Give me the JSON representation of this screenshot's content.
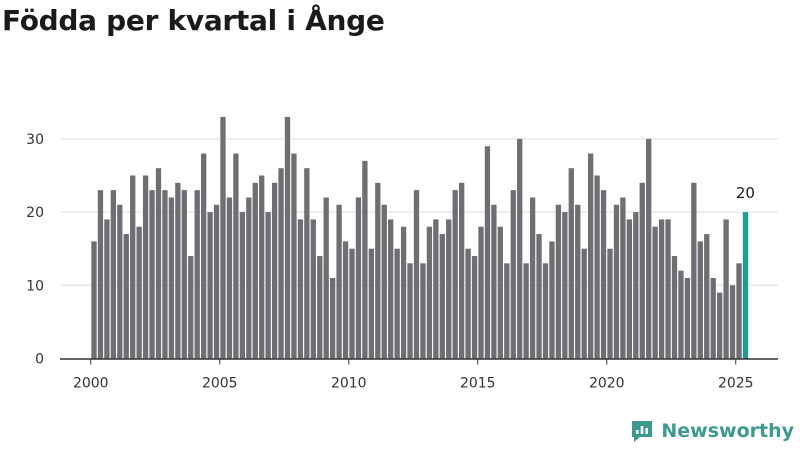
{
  "title": "Födda per kvartal i Ånge",
  "brand": {
    "name": "Newsworthy",
    "icon": "newsworthy-logo-icon",
    "color": "#3d9a8f"
  },
  "colors": {
    "bar": "#6e6e73",
    "highlight": "#1f9a8e",
    "grid": "#dddddd",
    "axis": "#333333"
  },
  "chart_data": {
    "type": "bar",
    "title": "Födda per kvartal i Ånge",
    "xlabel": "",
    "ylabel": "",
    "x_tick_labels": [
      "2000",
      "2005",
      "2010",
      "2015",
      "2020",
      "2025"
    ],
    "y_tick_labels": [
      "0",
      "10",
      "20",
      "30"
    ],
    "ylim": [
      0,
      35
    ],
    "grid": "horizontal",
    "first_period": "2000 Q1",
    "values": [
      16,
      23,
      19,
      23,
      21,
      17,
      25,
      18,
      25,
      23,
      26,
      23,
      22,
      24,
      23,
      14,
      23,
      28,
      20,
      21,
      33,
      22,
      28,
      20,
      22,
      24,
      25,
      20,
      24,
      26,
      33,
      28,
      19,
      26,
      19,
      14,
      22,
      11,
      21,
      16,
      15,
      22,
      27,
      15,
      24,
      21,
      19,
      15,
      18,
      13,
      23,
      13,
      18,
      19,
      17,
      19,
      23,
      24,
      15,
      14,
      18,
      29,
      21,
      18,
      13,
      23,
      30,
      13,
      22,
      17,
      13,
      16,
      21,
      20,
      26,
      21,
      15,
      28,
      25,
      23,
      15,
      21,
      22,
      19,
      20,
      24,
      30,
      18,
      19,
      19,
      14,
      12,
      11,
      24,
      16,
      17,
      11,
      9,
      19,
      10,
      13,
      20
    ],
    "highlight_index": 101,
    "highlight_label": "20"
  }
}
